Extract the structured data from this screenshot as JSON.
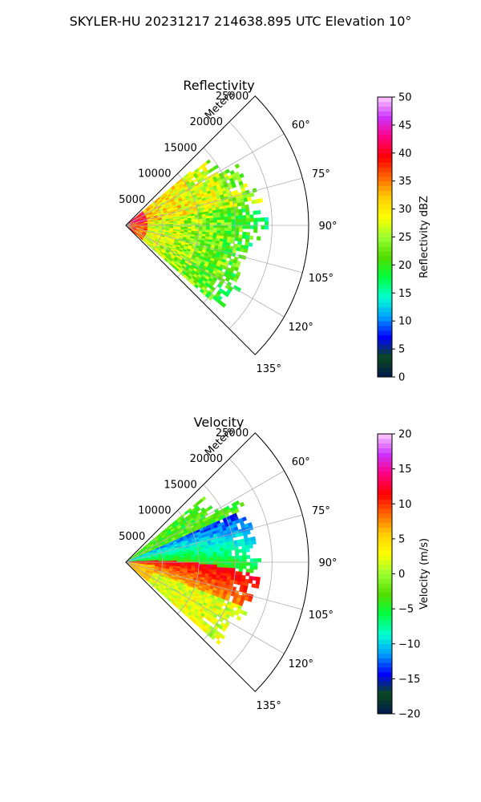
{
  "figure": {
    "suptitle": "SKYLER-HU  20231217  214638.895 UTC Elevation 10°"
  },
  "chart_data": [
    {
      "type": "heatmap",
      "projection": "polar-sector",
      "title": "Reflectivity",
      "radial_axis_label": "Meters",
      "radial_ticks": [
        5000,
        10000,
        15000,
        20000,
        25000
      ],
      "radial_tick_labels": [
        "5000",
        "10000",
        "15000",
        "20000",
        "25000"
      ],
      "azimuth_range_deg": [
        45,
        135
      ],
      "azimuth_ticks_deg": [
        60,
        75,
        90,
        105,
        120,
        135
      ],
      "azimuth_tick_labels": [
        "60°",
        "75°",
        "90°",
        "105°",
        "120°",
        "135°"
      ],
      "data_extent_range_m": [
        0,
        18000
      ],
      "data_extent_azimuth_deg": [
        50,
        130
      ],
      "field": "reflectivity",
      "colorbar": {
        "label": "Reflectivity dBZ",
        "vmin": 0,
        "vmax": 50,
        "ticks": [
          0,
          5,
          10,
          15,
          20,
          25,
          30,
          35,
          40,
          45,
          50
        ],
        "tick_labels": [
          "0",
          "5",
          "10",
          "15",
          "20",
          "25",
          "30",
          "35",
          "40",
          "45",
          "50"
        ],
        "colormap_stops": [
          "#00184d",
          "#0b4a1e",
          "#0000ff",
          "#00a0ff",
          "#00ffd0",
          "#00ff40",
          "#55dd00",
          "#99ff33",
          "#ffff00",
          "#ffcc00",
          "#ff6600",
          "#ff0000",
          "#ff0080",
          "#cc33ff",
          "#ffccff"
        ]
      }
    },
    {
      "type": "heatmap",
      "projection": "polar-sector",
      "title": "Velocity",
      "radial_axis_label": "Meters",
      "radial_ticks": [
        5000,
        10000,
        15000,
        20000,
        25000
      ],
      "radial_tick_labels": [
        "5000",
        "10000",
        "15000",
        "20000",
        "25000"
      ],
      "azimuth_range_deg": [
        45,
        135
      ],
      "azimuth_ticks_deg": [
        60,
        75,
        90,
        105,
        120,
        135
      ],
      "azimuth_tick_labels": [
        "60°",
        "75°",
        "90°",
        "105°",
        "120°",
        "135°"
      ],
      "data_extent_range_m": [
        0,
        18000
      ],
      "data_extent_azimuth_deg": [
        50,
        130
      ],
      "field": "velocity",
      "colorbar": {
        "label": "Velocity (m/s)",
        "vmin": -20,
        "vmax": 20,
        "ticks": [
          -20,
          -15,
          -10,
          -5,
          0,
          5,
          10,
          15,
          20
        ],
        "tick_labels": [
          "−20",
          "−15",
          "−10",
          "−5",
          "0",
          "5",
          "10",
          "15",
          "20"
        ],
        "colormap_stops": [
          "#00184d",
          "#0b4a1e",
          "#0000ff",
          "#00a0ff",
          "#00ffd0",
          "#00ff40",
          "#55dd00",
          "#99ff33",
          "#ffff00",
          "#ffcc00",
          "#ff6600",
          "#ff0000",
          "#ff0080",
          "#cc33ff",
          "#ffccff"
        ]
      }
    }
  ]
}
